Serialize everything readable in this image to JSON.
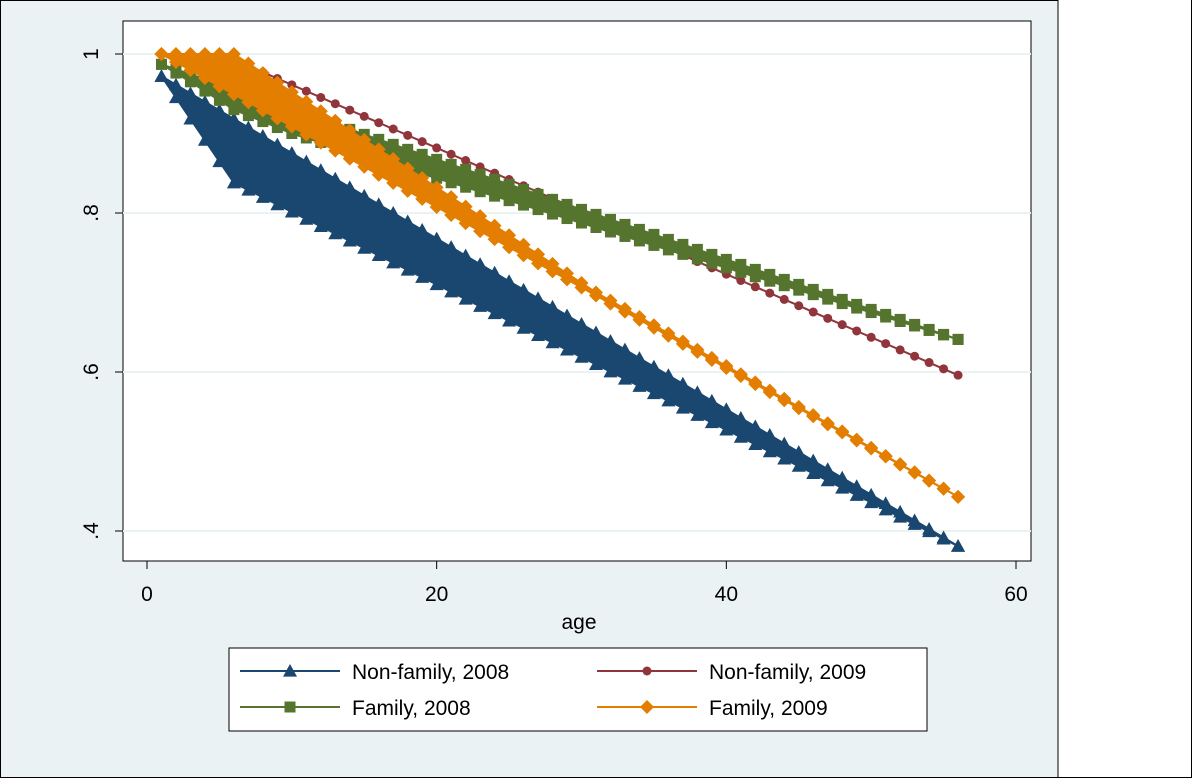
{
  "colors": {
    "outer_background": "#eaf2f3",
    "plot_background": "#ffffff",
    "gridline": "#eaf2f3",
    "border": "#000000"
  },
  "chart_data": {
    "type": "line",
    "xlabel": "age",
    "ylabel": "",
    "xlim": [
      -1,
      61
    ],
    "ylim": [
      0.38,
      1.0
    ],
    "xticks": [
      0,
      20,
      40,
      60
    ],
    "xtick_labels": [
      "0",
      "20",
      "40",
      "60"
    ],
    "yticks": [
      0.4,
      0.6,
      0.8,
      1.0
    ],
    "ytick_labels": [
      ".4",
      ".6",
      ".8",
      "1"
    ],
    "grid": true,
    "legend_position": "bottom",
    "series": [
      {
        "name": "Non-family, 2008",
        "color": "#1a476f",
        "marker": "triangle",
        "upper_x": [
          1,
          56
        ],
        "upper_y": [
          0.972,
          0.381
        ],
        "lower_x": [
          1,
          6,
          56
        ],
        "lower_y": [
          0.972,
          0.838,
          0.381
        ]
      },
      {
        "name": "Non-family, 2009",
        "color": "#90353b",
        "marker": "circle",
        "x": [
          1,
          6,
          56
        ],
        "y": [
          1.0,
          0.993,
          0.596
        ]
      },
      {
        "name": "Family, 2008",
        "color": "#55752f",
        "marker": "square",
        "upper_x": [
          1,
          56
        ],
        "upper_y": [
          0.987,
          0.641
        ],
        "lower_x": [
          1,
          3,
          6,
          10,
          56
        ],
        "lower_y": [
          0.987,
          0.965,
          0.93,
          0.9,
          0.641
        ]
      },
      {
        "name": "Family, 2009",
        "color": "#e37e00",
        "marker": "diamond",
        "upper_x": [
          1,
          6,
          31,
          56
        ],
        "upper_y": [
          1.0,
          1.0,
          0.7,
          0.443
        ],
        "lower_x": [
          1,
          56
        ],
        "lower_y": [
          1.0,
          0.443
        ]
      }
    ]
  }
}
